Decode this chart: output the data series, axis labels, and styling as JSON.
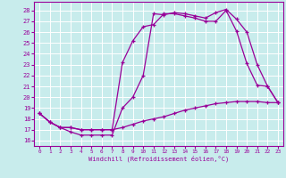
{
  "xlabel": "Windchill (Refroidissement éolien,°C)",
  "bg_color": "#c8ecec",
  "grid_color": "#ffffff",
  "line_color": "#990099",
  "xlim": [
    -0.5,
    23.5
  ],
  "ylim": [
    15.5,
    28.8
  ],
  "yticks": [
    16,
    17,
    18,
    19,
    20,
    21,
    22,
    23,
    24,
    25,
    26,
    27,
    28
  ],
  "xticks": [
    0,
    1,
    2,
    3,
    4,
    5,
    6,
    7,
    8,
    9,
    10,
    11,
    12,
    13,
    14,
    15,
    16,
    17,
    18,
    19,
    20,
    21,
    22,
    23
  ],
  "line1_x": [
    0,
    1,
    2,
    3,
    4,
    5,
    6,
    7,
    8,
    9,
    10,
    11,
    12,
    13,
    14,
    15,
    16,
    17,
    18,
    19,
    20,
    21,
    22,
    23
  ],
  "line1_y": [
    18.5,
    17.7,
    17.2,
    16.8,
    16.5,
    16.5,
    16.5,
    16.5,
    19.0,
    20.0,
    22.0,
    27.7,
    27.6,
    27.8,
    27.7,
    27.5,
    27.3,
    27.8,
    28.1,
    27.2,
    26.0,
    23.0,
    21.0,
    19.5
  ],
  "line2_x": [
    0,
    1,
    2,
    3,
    4,
    5,
    6,
    7,
    8,
    9,
    10,
    11,
    12,
    13,
    14,
    15,
    16,
    17,
    18,
    19,
    20,
    21,
    22,
    23
  ],
  "line2_y": [
    18.5,
    17.7,
    17.2,
    17.2,
    17.0,
    17.0,
    17.0,
    17.0,
    23.2,
    25.2,
    26.5,
    26.7,
    27.7,
    27.7,
    27.5,
    27.3,
    27.0,
    27.0,
    28.0,
    26.1,
    23.1,
    21.1,
    21.0,
    19.5
  ],
  "line3_x": [
    0,
    1,
    2,
    3,
    4,
    5,
    6,
    7,
    8,
    9,
    10,
    11,
    12,
    13,
    14,
    15,
    16,
    17,
    18,
    19,
    20,
    21,
    22,
    23
  ],
  "line3_y": [
    18.5,
    17.7,
    17.2,
    17.2,
    17.0,
    17.0,
    17.0,
    17.0,
    17.2,
    17.5,
    17.8,
    18.0,
    18.2,
    18.5,
    18.8,
    19.0,
    19.2,
    19.4,
    19.5,
    19.6,
    19.6,
    19.6,
    19.5,
    19.5
  ]
}
